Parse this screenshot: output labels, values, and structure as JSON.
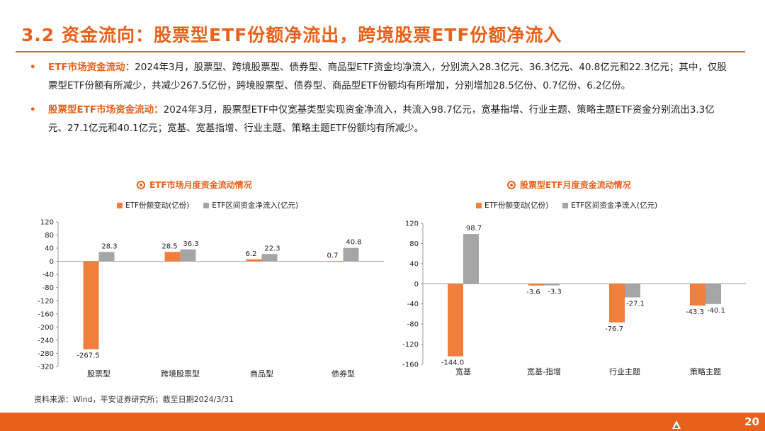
{
  "title": "3.2 资金流向：股票型ETF份额净流出，跨境股票ETF份额净流入",
  "bullets": [
    {
      "lead": "ETF市场资金流动：",
      "text": "2024年3月，股票型、跨境股票型、债券型、商品型ETF资金均净流入，分别流入28.3亿元、36.3亿元、40.8亿元和22.3亿元；其中，仅股票型ETF份额有所减少，共减少267.5亿份，跨境股票型、债券型、商品型ETF份额均有所增加，分别增加28.5亿份、0.7亿份、6.2亿份。"
    },
    {
      "lead": "股票型ETF市场资金流动：",
      "text": "2024年3月，股票型ETF中仅宽基类型实现资金净流入，共流入98.7亿元，宽基指增、行业主题、策略主题ETF资金分别流出3.3亿元、27.1亿元和40.1亿元；宽基、宽基指增、行业主题、策略主题ETF份额均有所减少。"
    }
  ],
  "charts": {
    "left": {
      "title": "ETF市场月度资金流动情况"
    },
    "right": {
      "title": "股票型ETF月度资金流动情况"
    }
  },
  "legend": {
    "series_a": "ETF份额变动(亿份)",
    "series_b": "ETF区间资金净流入(亿元)"
  },
  "colors": {
    "accent": "#e8611a",
    "series_a": "#f07f3c",
    "series_b": "#a5a5a5"
  },
  "chart_data": [
    {
      "type": "bar",
      "title": "ETF市场月度资金流动情况",
      "categories": [
        "股票型",
        "跨境股票型",
        "商品型",
        "债券型"
      ],
      "series": [
        {
          "name": "ETF份额变动(亿份)",
          "values": [
            -267.5,
            28.5,
            6.2,
            0.7
          ]
        },
        {
          "name": "ETF区间资金净流入(亿元)",
          "values": [
            28.3,
            36.3,
            22.3,
            40.8
          ]
        }
      ],
      "ylim": [
        -320,
        120
      ],
      "yticks": [
        120,
        80,
        40,
        0,
        -40,
        -80,
        -120,
        -160,
        -200,
        -240,
        -280,
        -320
      ],
      "legend": "top",
      "grid": false
    },
    {
      "type": "bar",
      "title": "股票型ETF月度资金流动情况",
      "categories": [
        "宽基",
        "宽基-指增",
        "行业主题",
        "策略主题"
      ],
      "series": [
        {
          "name": "ETF份额变动(亿份)",
          "values": [
            -144.0,
            -3.6,
            -76.7,
            -43.3
          ]
        },
        {
          "name": "ETF区间资金净流入(亿元)",
          "values": [
            98.7,
            -3.3,
            -27.1,
            -40.1
          ]
        }
      ],
      "ylim": [
        -160,
        120
      ],
      "yticks": [
        120,
        80,
        40,
        0,
        -40,
        -80,
        -120,
        -160
      ],
      "legend": "top",
      "grid": false
    }
  ],
  "source": "资料来源：Wind，平安证券研究所；截至日期2024/3/31",
  "page_number": "20"
}
